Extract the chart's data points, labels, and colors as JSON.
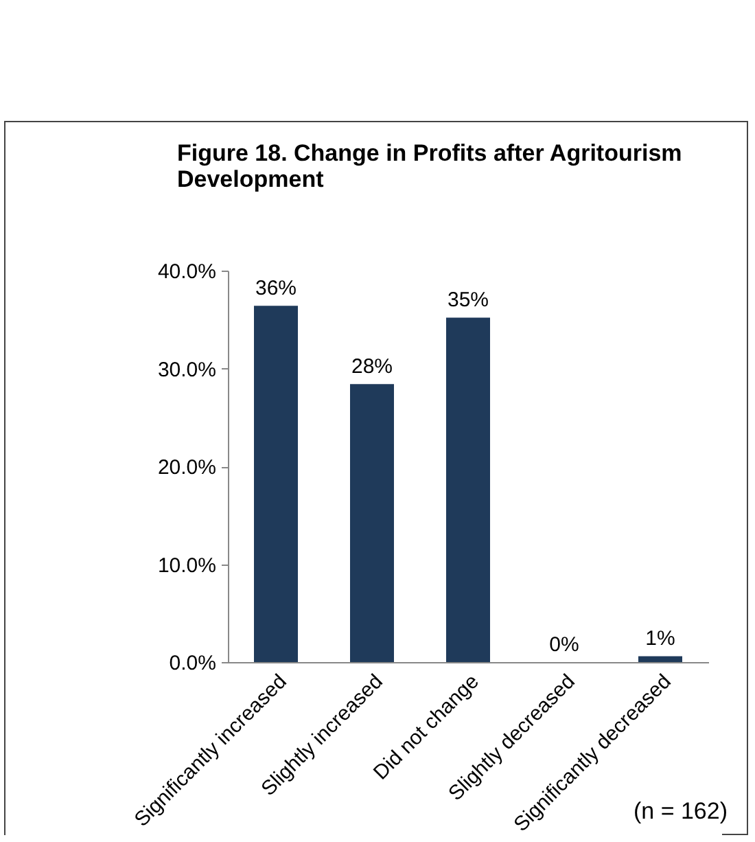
{
  "chart_data": {
    "type": "bar",
    "title": "Figure 18.  Change in Profits after Agritourism Development",
    "categories": [
      "Significantly increased",
      "Slightly increased",
      "Did not change",
      "Slightly decreased",
      "Significantly decreased"
    ],
    "values": [
      36.4,
      28.4,
      35.2,
      0,
      0.6
    ],
    "value_labels": [
      "36%",
      "28%",
      "35%",
      "0%",
      "1%"
    ],
    "color": "#1f3a5a",
    "ylim": [
      0,
      40
    ],
    "yticks": [
      {
        "value": 0,
        "label": "0.0%"
      },
      {
        "value": 10,
        "label": "10.0%"
      },
      {
        "value": 20,
        "label": "20.0%"
      },
      {
        "value": 30,
        "label": "30.0%"
      },
      {
        "value": 40,
        "label": "40.0%"
      }
    ],
    "grid": false,
    "annotations": [
      "(n = 162)"
    ]
  }
}
